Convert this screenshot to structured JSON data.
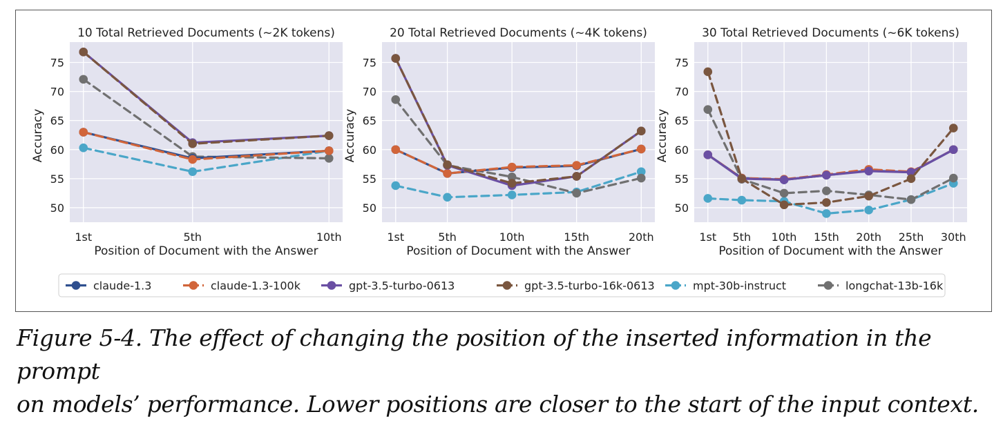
{
  "caption": {
    "line1": "Figure 5-4. The effect of changing the position of the inserted information in the prompt",
    "line2": "on models’ performance. Lower positions are closer to the start of the input context."
  },
  "legend": [
    {
      "name": "claude-1.3",
      "color": "#2f4f8f"
    },
    {
      "name": "claude-1.3-100k",
      "color": "#d1653a"
    },
    {
      "name": "gpt-3.5-turbo-0613",
      "color": "#6a4fa3"
    },
    {
      "name": "gpt-3.5-turbo-16k-0613",
      "color": "#7a563f"
    },
    {
      "name": "mpt-30b-instruct",
      "color": "#4aa6c8"
    },
    {
      "name": "longchat-13b-16k",
      "color": "#707070"
    }
  ],
  "chart_data": [
    {
      "type": "line",
      "title": "10 Total Retrieved Documents (~2K tokens)",
      "xlabel": "Position of Document with the Answer",
      "ylabel": "Accuracy",
      "x": [
        1,
        5,
        10
      ],
      "xticks": [
        "1st",
        "5th",
        "10th"
      ],
      "yticks": [
        50,
        55,
        60,
        65,
        70,
        75
      ],
      "ylim": [
        47.5,
        78.5
      ],
      "grid": true,
      "series": [
        {
          "name": "claude-1.3",
          "values": [
            63.0,
            58.5,
            59.8
          ]
        },
        {
          "name": "claude-1.3-100k",
          "values": [
            63.0,
            58.3,
            59.8
          ]
        },
        {
          "name": "gpt-3.5-turbo-0613",
          "values": [
            76.8,
            61.2,
            62.4
          ]
        },
        {
          "name": "gpt-3.5-turbo-16k-0613",
          "values": [
            76.8,
            61.0,
            62.4
          ]
        },
        {
          "name": "mpt-30b-instruct",
          "values": [
            60.3,
            56.2,
            59.8
          ]
        },
        {
          "name": "longchat-13b-16k",
          "values": [
            72.1,
            58.8,
            58.5
          ]
        }
      ]
    },
    {
      "type": "line",
      "title": "20 Total Retrieved Documents (~4K tokens)",
      "xlabel": "Position of Document with the Answer",
      "ylabel": "Accuracy",
      "x": [
        1,
        5,
        10,
        15,
        20
      ],
      "xticks": [
        "1st",
        "5th",
        "10th",
        "15th",
        "20th"
      ],
      "yticks": [
        50,
        55,
        60,
        65,
        70,
        75
      ],
      "ylim": [
        47.5,
        78.5
      ],
      "grid": true,
      "series": [
        {
          "name": "claude-1.3",
          "values": [
            60.0,
            55.9,
            56.9,
            57.2,
            60.1
          ]
        },
        {
          "name": "claude-1.3-100k",
          "values": [
            60.0,
            55.9,
            57.0,
            57.3,
            60.1
          ]
        },
        {
          "name": "gpt-3.5-turbo-0613",
          "values": [
            75.7,
            57.3,
            53.8,
            55.4,
            63.2
          ]
        },
        {
          "name": "gpt-3.5-turbo-16k-0613",
          "values": [
            75.7,
            57.4,
            54.2,
            55.4,
            63.2
          ]
        },
        {
          "name": "mpt-30b-instruct",
          "values": [
            53.8,
            51.8,
            52.2,
            52.7,
            56.2
          ]
        },
        {
          "name": "longchat-13b-16k",
          "values": [
            68.6,
            57.3,
            55.3,
            52.5,
            55.1
          ]
        }
      ]
    },
    {
      "type": "line",
      "title": "30 Total Retrieved Documents (~6K tokens)",
      "xlabel": "Position of Document with the Answer",
      "ylabel": "Accuracy",
      "x": [
        1,
        5,
        10,
        15,
        20,
        25,
        30
      ],
      "xticks": [
        "1st",
        "5th",
        "10th",
        "15th",
        "20th",
        "25th",
        "30th"
      ],
      "yticks": [
        50,
        55,
        60,
        65,
        70,
        75
      ],
      "ylim": [
        47.5,
        78.5
      ],
      "grid": true,
      "series": [
        {
          "name": "claude-1.3",
          "values": [
            59.1,
            55.1,
            54.8,
            55.6,
            56.4,
            56.1,
            60.0
          ]
        },
        {
          "name": "claude-1.3-100k",
          "values": [
            59.1,
            55.1,
            54.9,
            55.7,
            56.6,
            56.2,
            60.0
          ]
        },
        {
          "name": "gpt-3.5-turbo-0613",
          "values": [
            59.1,
            55.0,
            54.8,
            55.6,
            56.3,
            56.1,
            60.0
          ]
        },
        {
          "name": "gpt-3.5-turbo-16k-0613",
          "values": [
            73.4,
            55.0,
            50.5,
            50.9,
            52.0,
            55.0,
            63.7
          ]
        },
        {
          "name": "mpt-30b-instruct",
          "values": [
            51.6,
            51.3,
            51.1,
            49.0,
            49.6,
            51.4,
            54.2
          ]
        },
        {
          "name": "longchat-13b-16k",
          "values": [
            66.9,
            54.9,
            52.5,
            52.9,
            52.2,
            51.4,
            55.1
          ]
        }
      ]
    }
  ]
}
